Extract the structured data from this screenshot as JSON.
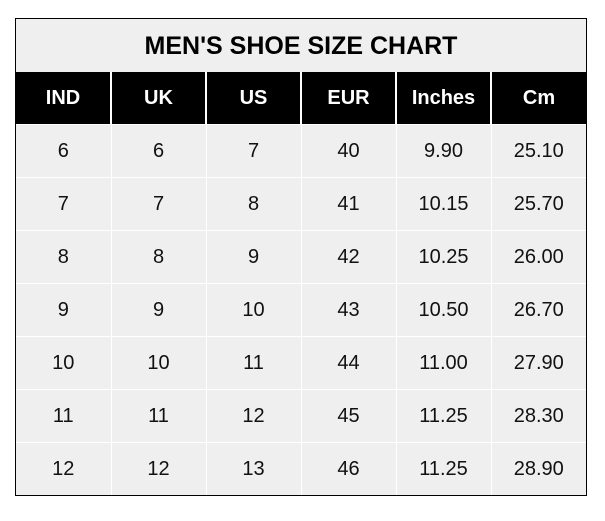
{
  "title": "MEN'S SHOE SIZE CHART",
  "headers": [
    "IND",
    "UK",
    "US",
    "EUR",
    "Inches",
    "Cm"
  ],
  "rows": [
    [
      "6",
      "6",
      "7",
      "40",
      "9.90",
      "25.10"
    ],
    [
      "7",
      "7",
      "8",
      "41",
      "10.15",
      "25.70"
    ],
    [
      "8",
      "8",
      "9",
      "42",
      "10.25",
      "26.00"
    ],
    [
      "9",
      "9",
      "10",
      "43",
      "10.50",
      "26.70"
    ],
    [
      "10",
      "10",
      "11",
      "44",
      "11.00",
      "27.90"
    ],
    [
      "11",
      "11",
      "12",
      "45",
      "11.25",
      "28.30"
    ],
    [
      "12",
      "12",
      "13",
      "46",
      "11.25",
      "28.90"
    ]
  ],
  "colors": {
    "header_bg": "#000000",
    "header_text": "#ffffff",
    "cell_bg": "#efefef"
  }
}
